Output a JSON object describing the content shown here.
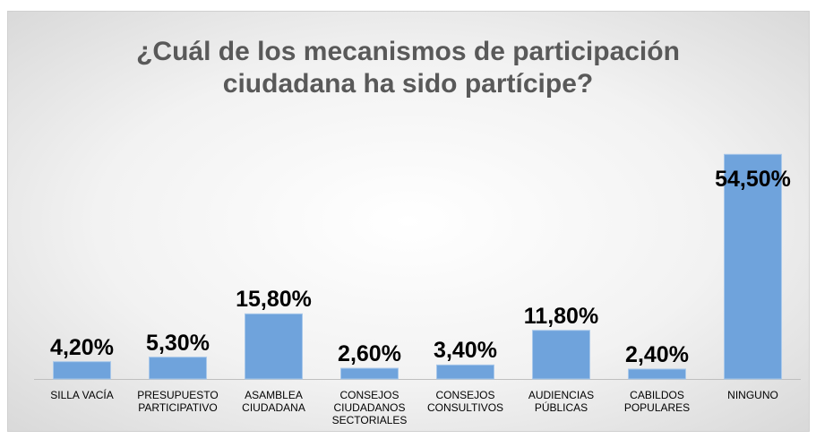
{
  "chart_data": {
    "type": "bar",
    "title": "¿Cuál de los mecanismos de participación ciudadana ha sido partícipe?",
    "categories": [
      "SILLA VACÍA",
      "PRESUPUESTO PARTICIPATIVO",
      "ASAMBLEA CIUDADANA",
      "CONSEJOS CIUDADANOS SECTORIALES",
      "CONSEJOS CONSULTIVOS",
      "AUDIENCIAS PÚBLICAS",
      "CABILDOS POPULARES",
      "NINGUNO"
    ],
    "values": [
      4.2,
      5.3,
      15.8,
      2.6,
      3.4,
      11.8,
      2.4,
      54.5
    ],
    "value_labels": [
      "4,20%",
      "5,30%",
      "15,80%",
      "2,60%",
      "3,40%",
      "11,80%",
      "2,40%",
      "54,50%"
    ],
    "color": "#6fa3dc",
    "ylim": [
      0,
      60
    ]
  }
}
